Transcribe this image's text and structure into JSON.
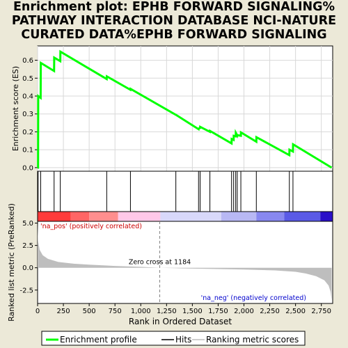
{
  "title_lines": [
    "Enrichment plot: EPHB FORWARD SIGNALING%",
    "PATHWAY INTERACTION DATABASE NCI-NATURE",
    "CURATED DATA%EPHB FORWARD SIGNALING"
  ],
  "colors": {
    "background": "#ece9d8",
    "es_line": "#00ff00",
    "hits": "#000000",
    "metric_fill": "#bebebe",
    "pos_label": "#cc0000",
    "neg_label": "#0000cc",
    "zero_cross": "#808080"
  },
  "chart_data": [
    {
      "type": "line",
      "name": "enrichment-score",
      "ylabel": "Enrichment score (ES)",
      "ylim": [
        -0.02,
        0.68
      ],
      "yticks": [
        0.0,
        0.1,
        0.2,
        0.3,
        0.4,
        0.5,
        0.6
      ],
      "ytick_labels": [
        "0.0",
        "0.1",
        "0.2",
        "0.3",
        "0.4",
        "0.5",
        "0.6"
      ],
      "xlim": [
        0,
        2860
      ],
      "grid": true,
      "series": [
        {
          "name": "Enrichment profile",
          "x": [
            0,
            5,
            6,
            30,
            31,
            160,
            161,
            220,
            221,
            670,
            671,
            900,
            901,
            1340,
            1341,
            1560,
            1561,
            1575,
            1576,
            1670,
            1671,
            1880,
            1881,
            1900,
            1901,
            1920,
            1921,
            1935,
            1936,
            1970,
            1971,
            2120,
            2121,
            2440,
            2441,
            2475,
            2476,
            2850
          ],
          "y": [
            0.0,
            0.0,
            0.4,
            0.39,
            0.585,
            0.54,
            0.615,
            0.595,
            0.648,
            0.495,
            0.51,
            0.435,
            0.44,
            0.295,
            0.295,
            0.215,
            0.218,
            0.222,
            0.228,
            0.2,
            0.205,
            0.135,
            0.16,
            0.155,
            0.178,
            0.175,
            0.195,
            0.18,
            0.182,
            0.178,
            0.197,
            0.145,
            0.17,
            0.07,
            0.1,
            0.09,
            0.13,
            0.0
          ]
        }
      ]
    },
    {
      "type": "scatter",
      "name": "hits",
      "xlim": [
        0,
        2860
      ],
      "x": [
        5,
        30,
        160,
        220,
        670,
        900,
        1340,
        1560,
        1575,
        1670,
        1880,
        1900,
        1920,
        1935,
        1970,
        2120,
        2440,
        2475
      ]
    },
    {
      "type": "heatmap",
      "name": "ranking-color-bar",
      "xlim": [
        0,
        2860
      ],
      "segments": [
        {
          "from": 0,
          "to": 320,
          "color": "#ff3b3b"
        },
        {
          "from": 320,
          "to": 500,
          "color": "#ff6565"
        },
        {
          "from": 500,
          "to": 780,
          "color": "#ff8e8e"
        },
        {
          "from": 780,
          "to": 1190,
          "color": "#ffc8e8"
        },
        {
          "from": 1190,
          "to": 1780,
          "color": "#d8d8fa"
        },
        {
          "from": 1780,
          "to": 2120,
          "color": "#b8b8f4"
        },
        {
          "from": 2120,
          "to": 2390,
          "color": "#8888f0"
        },
        {
          "from": 2390,
          "to": 2740,
          "color": "#5a5ae6"
        },
        {
          "from": 2740,
          "to": 2860,
          "color": "#2a10c8"
        }
      ]
    },
    {
      "type": "area",
      "name": "ranked-list-metric",
      "ylabel": "Ranked list metric (PreRanked)",
      "xlabel": "Rank in Ordered Dataset",
      "xlim": [
        0,
        2860
      ],
      "ylim": [
        -4.0,
        5.2
      ],
      "yticks": [
        -2.5,
        0.0,
        2.5,
        5.0
      ],
      "ytick_labels": [
        "-2.5",
        "0.0",
        "2.5",
        "5.0"
      ],
      "xticks": [
        0,
        250,
        500,
        750,
        1000,
        1250,
        1500,
        1750,
        2000,
        2250,
        2500,
        2750
      ],
      "xtick_labels": [
        "0",
        "250",
        "500",
        "750",
        "1,000",
        "1,250",
        "1,500",
        "1,750",
        "2,000",
        "2,250",
        "2,500",
        "2,750"
      ],
      "x": [
        0,
        5,
        20,
        50,
        100,
        200,
        350,
        500,
        750,
        1000,
        1184,
        1400,
        1700,
        2000,
        2300,
        2500,
        2600,
        2700,
        2780,
        2820,
        2840,
        2850
      ],
      "y": [
        4.9,
        3.0,
        2.0,
        1.4,
        1.0,
        0.65,
        0.45,
        0.35,
        0.2,
        0.1,
        0.0,
        -0.07,
        -0.13,
        -0.2,
        -0.3,
        -0.45,
        -0.65,
        -0.95,
        -1.4,
        -2.0,
        -2.7,
        -3.6
      ],
      "annotations": {
        "pos": "'na_pos' (positively correlated)",
        "neg": "'na_neg' (negatively correlated)",
        "zero_cross": "Zero cross at 1184",
        "zero_cross_x": 1184
      }
    }
  ],
  "legend": {
    "items": [
      {
        "label": "Enrichment profile",
        "color": "#00ff00"
      },
      {
        "label": "Hits",
        "color": "#000000"
      },
      {
        "label": "Ranking metric scores",
        "color": "#bebebe"
      }
    ]
  }
}
